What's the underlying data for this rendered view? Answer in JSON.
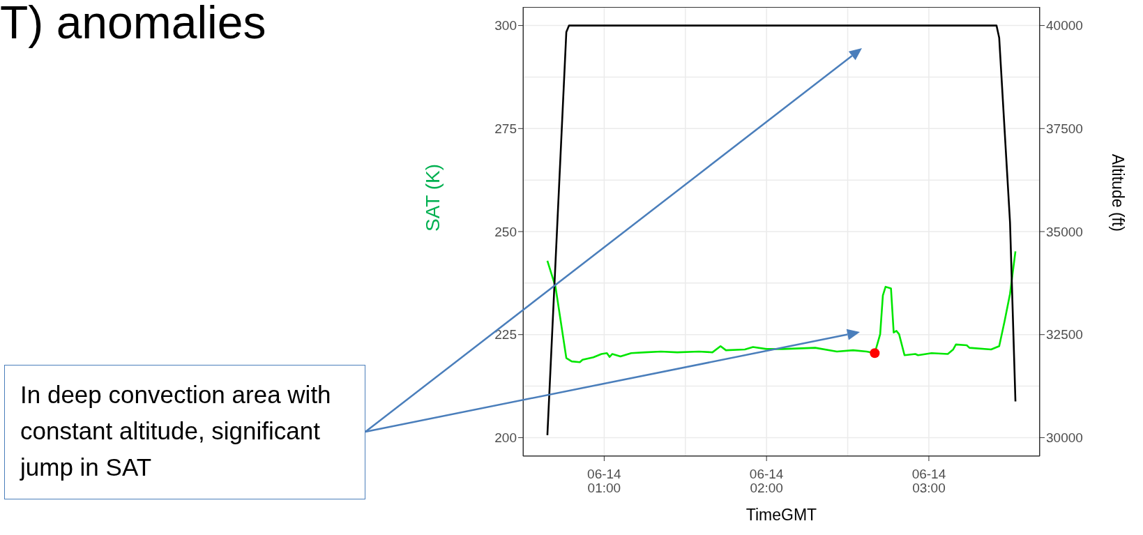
{
  "chart_data": {
    "type": "line",
    "title": "T) anomalies",
    "xlabel": "TimeGMT",
    "ylabel": "SAT (K)",
    "y2label": "Altitude (ft)",
    "annotations": [
      "In deep convection area with constant altitude, significant jump in SAT"
    ],
    "xlim": [
      "--06-14T00:30",
      "--06-14T03:41"
    ],
    "xticks": [
      {
        "value": "--06-14T01:00",
        "label": "06-14\n01:00"
      },
      {
        "value": "--06-14T02:00",
        "label": "06-14\n02:00"
      },
      {
        "value": "--06-14T03:00",
        "label": "06-14\n03:00"
      }
    ],
    "ylim": [
      195.5,
      304.5
    ],
    "yticks": [
      200,
      225,
      250,
      275,
      300
    ],
    "y2lim": [
      29550,
      40450
    ],
    "y2ticks": [
      30000,
      32500,
      35000,
      37500,
      40000
    ],
    "grid": true,
    "series": [
      {
        "color": "#00e600",
        "x": [
          "--06-14T00:39",
          "--06-14T00:42",
          "--06-14T00:46",
          "--06-14T00:48",
          "--06-14T00:51",
          "--06-14T00:52",
          "--06-14T00:56",
          "--06-14T00:59",
          "--06-14T01:01",
          "--06-14T01:02",
          "--06-14T01:03",
          "--06-14T01:06",
          "--06-14T01:10",
          "--06-14T01:15",
          "--06-14T01:21",
          "--06-14T01:27",
          "--06-14T01:35",
          "--06-14T01:40",
          "--06-14T01:43",
          "--06-14T01:45",
          "--06-14T01:52",
          "--06-14T01:55",
          "--06-14T02:00",
          "--06-14T02:06",
          "--06-14T02:18",
          "--06-14T02:26",
          "--06-14T02:32",
          "--06-14T02:37",
          "--06-14T02:40",
          "--06-14T02:42",
          "--06-14T02:43",
          "--06-14T02:44",
          "--06-14T02:46",
          "--06-14T02:47",
          "--06-14T02:48",
          "--06-14T02:49",
          "--06-14T02:51",
          "--06-14T02:55",
          "--06-14T02:56",
          "--06-14T03:01",
          "--06-14T03:07",
          "--06-14T03:09",
          "--06-14T03:10",
          "--06-14T03:14",
          "--06-14T03:15",
          "--06-14T03:23",
          "--06-14T03:26",
          "--06-14T03:28",
          "--06-14T03:30",
          "--06-14T03:32"
        ],
        "values": [
          242.9,
          236.6,
          219.3,
          218.5,
          218.3,
          218.9,
          219.5,
          220.3,
          220.5,
          219.6,
          220.3,
          219.7,
          220.5,
          220.7,
          220.9,
          220.7,
          220.9,
          220.7,
          222.2,
          221.2,
          221.4,
          222.0,
          221.5,
          221.5,
          221.8,
          220.9,
          221.2,
          220.9,
          220.5,
          225.1,
          234.5,
          236.6,
          236.2,
          225.5,
          225.9,
          225.1,
          220.0,
          220.3,
          220.0,
          220.5,
          220.3,
          221.4,
          222.6,
          222.4,
          221.8,
          221.4,
          222.2,
          228.3,
          234.9,
          245.2
        ]
      },
      {
        "color": "#000000",
        "axis": "y2",
        "x": [
          "--06-14T00:39",
          "--06-14T00:46",
          "--06-14T00:47",
          "--06-14T03:25",
          "--06-14T03:26",
          "--06-14T03:30",
          "--06-14T03:32"
        ],
        "values": [
          30060,
          39840,
          40000,
          40000,
          39700,
          35220,
          30880
        ]
      },
      {
        "type": "scatter",
        "color": "#ff0000",
        "x": [
          "--06-14T02:40"
        ],
        "values": [
          220.5
        ]
      }
    ]
  }
}
